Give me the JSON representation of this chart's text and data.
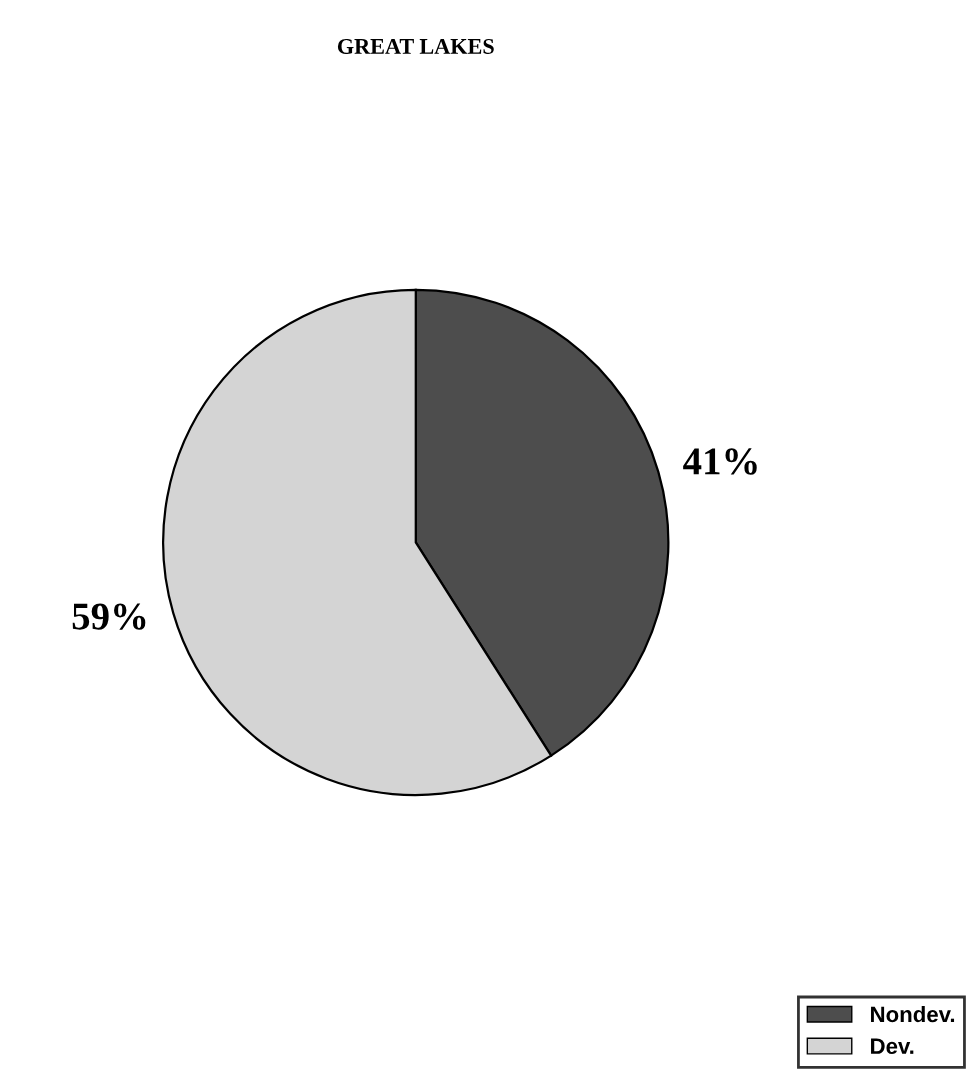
{
  "chart_data": {
    "type": "pie",
    "title": "GREAT LAKES",
    "categories": [
      "Nondev.",
      "Dev."
    ],
    "values": [
      41,
      59
    ],
    "value_labels": [
      "41%",
      "59%"
    ],
    "colors": [
      "#4d4d4d",
      "#d4d4d4"
    ],
    "legend": "bottom right"
  }
}
